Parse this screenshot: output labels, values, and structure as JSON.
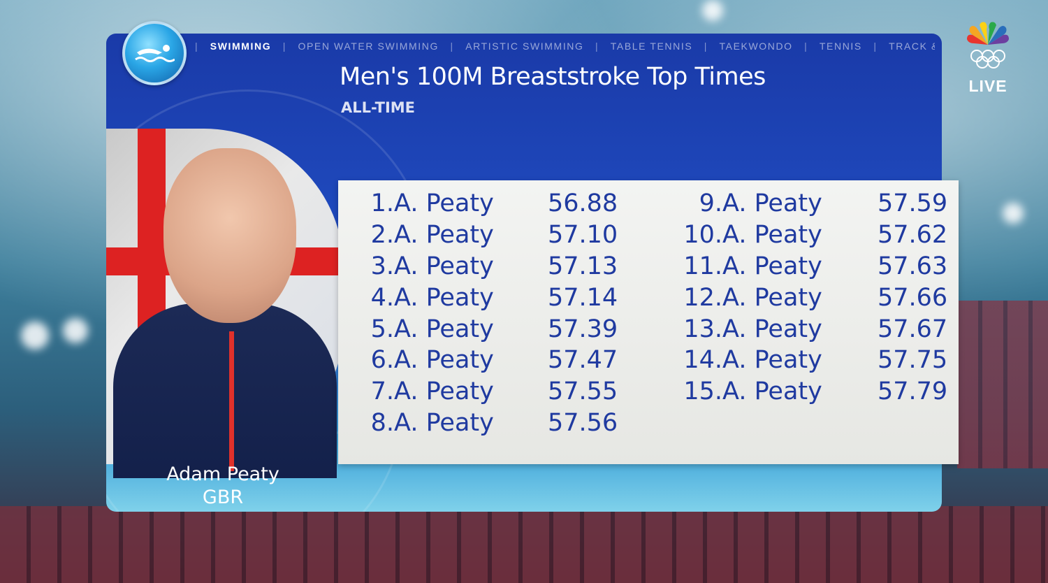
{
  "nav": {
    "items": [
      "SWIMMING",
      "OPEN WATER SWIMMING",
      "ARTISTIC SWIMMING",
      "TABLE TENNIS",
      "TAEKWONDO",
      "TENNIS",
      "TRACK & FIE"
    ],
    "active_index": 0
  },
  "header": {
    "title": "Men's 100M Breaststroke Top Times",
    "subtitle": "ALL-TIME"
  },
  "athlete": {
    "name": "Adam Peaty",
    "country": "GBR"
  },
  "broadcaster": {
    "logo_icon": "nbc-peacock-olympic-rings-icon",
    "live_label": "LIVE"
  },
  "times_left": [
    {
      "rank": "1.",
      "name": "A. Peaty",
      "time": "56.88"
    },
    {
      "rank": "2.",
      "name": "A. Peaty",
      "time": "57.10"
    },
    {
      "rank": "3.",
      "name": "A. Peaty",
      "time": "57.13"
    },
    {
      "rank": "4.",
      "name": "A. Peaty",
      "time": "57.14"
    },
    {
      "rank": "5.",
      "name": "A. Peaty",
      "time": "57.39"
    },
    {
      "rank": "6.",
      "name": "A. Peaty",
      "time": "57.47"
    },
    {
      "rank": "7.",
      "name": "A. Peaty",
      "time": "57.55"
    },
    {
      "rank": "8.",
      "name": "A. Peaty",
      "time": "57.56"
    }
  ],
  "times_right": [
    {
      "rank": "9.",
      "name": "A. Peaty",
      "time": "57.59"
    },
    {
      "rank": "10.",
      "name": "A. Peaty",
      "time": "57.62"
    },
    {
      "rank": "11.",
      "name": "A. Peaty",
      "time": "57.63"
    },
    {
      "rank": "12.",
      "name": "A. Peaty",
      "time": "57.66"
    },
    {
      "rank": "13.",
      "name": "A. Peaty",
      "time": "57.67"
    },
    {
      "rank": "14.",
      "name": "A. Peaty",
      "time": "57.75"
    },
    {
      "rank": "15.",
      "name": "A. Peaty",
      "time": "57.79"
    }
  ],
  "colors": {
    "panel_blue": "#1a3aa8",
    "list_text": "#1f3aa0",
    "card_bg": "#f3f4f2"
  }
}
